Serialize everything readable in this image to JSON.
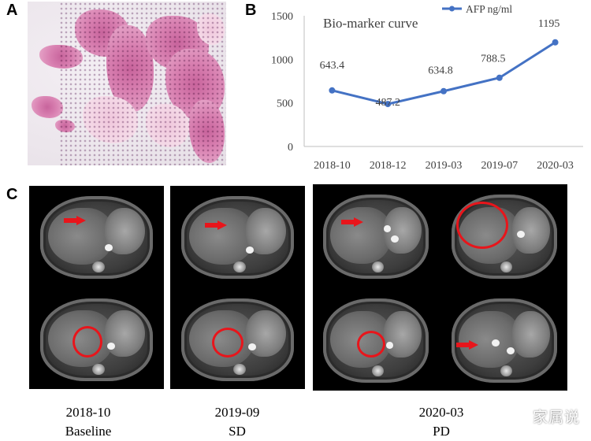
{
  "panels": {
    "a": "A",
    "b": "B",
    "c": "C"
  },
  "colors": {
    "series": "#4472c4",
    "axis": "#bfbfbf",
    "label": "#404040",
    "marker_red": "#e8151b"
  },
  "chart_data": {
    "type": "line",
    "title": "Bio-marker  curve",
    "categories": [
      "2018-10",
      "2018-12",
      "2019-03",
      "2019-07",
      "2020-03"
    ],
    "series": [
      {
        "name": "AFP ng/ml",
        "values": [
          643.4,
          487.2,
          634.8,
          788.5,
          1195
        ]
      }
    ],
    "data_labels": [
      "643.4",
      "487.2",
      "634.8",
      "788.5",
      "1195"
    ],
    "yticks": [
      "0",
      "500",
      "1000",
      "1500"
    ],
    "ylim": [
      0,
      1500
    ],
    "xlabel": "",
    "ylabel": "",
    "legend": "top-right",
    "grid": false
  },
  "captions": {
    "baseline": {
      "date": "2018-10",
      "label": "Baseline"
    },
    "sd": {
      "date": "2019-09",
      "label": "SD"
    },
    "pd": {
      "date": "2020-03",
      "label": "PD"
    }
  },
  "watermark": "家属说"
}
